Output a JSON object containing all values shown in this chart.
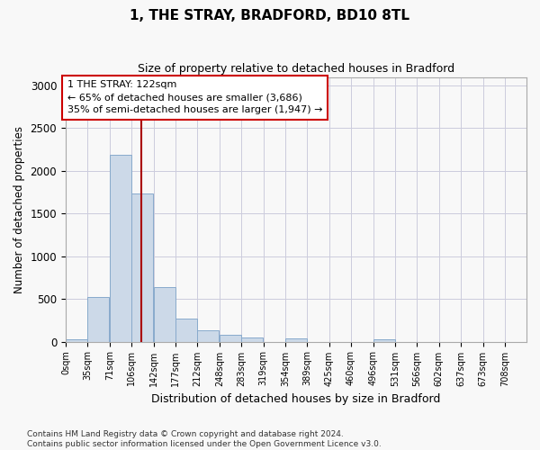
{
  "title": "1, THE STRAY, BRADFORD, BD10 8TL",
  "subtitle": "Size of property relative to detached houses in Bradford",
  "xlabel": "Distribution of detached houses by size in Bradford",
  "ylabel": "Number of detached properties",
  "footnote": "Contains HM Land Registry data © Crown copyright and database right 2024.\nContains public sector information licensed under the Open Government Licence v3.0.",
  "bar_color": "#ccd9e8",
  "bar_edgecolor": "#88aacc",
  "property_size": 122,
  "annotation_text_line1": "1 THE STRAY: 122sqm",
  "annotation_text_line2": "← 65% of detached houses are smaller (3,686)",
  "annotation_text_line3": "35% of semi-detached houses are larger (1,947) →",
  "annotation_box_color": "#cc0000",
  "vline_color": "#aa0000",
  "categories": [
    "0sqm",
    "35sqm",
    "71sqm",
    "106sqm",
    "142sqm",
    "177sqm",
    "212sqm",
    "248sqm",
    "283sqm",
    "319sqm",
    "354sqm",
    "389sqm",
    "425sqm",
    "460sqm",
    "496sqm",
    "531sqm",
    "566sqm",
    "602sqm",
    "637sqm",
    "673sqm",
    "708sqm"
  ],
  "bin_edges": [
    0,
    35,
    71,
    106,
    142,
    177,
    212,
    248,
    283,
    319,
    354,
    389,
    425,
    460,
    496,
    531,
    566,
    602,
    637,
    673,
    708
  ],
  "values": [
    30,
    525,
    2185,
    1730,
    635,
    265,
    130,
    75,
    45,
    0,
    35,
    0,
    0,
    0,
    30,
    0,
    0,
    0,
    0,
    0,
    0
  ],
  "ylim": [
    0,
    3100
  ],
  "yticks": [
    0,
    500,
    1000,
    1500,
    2000,
    2500,
    3000
  ],
  "background_color": "#f8f8f8",
  "grid_color": "#ccccdd"
}
